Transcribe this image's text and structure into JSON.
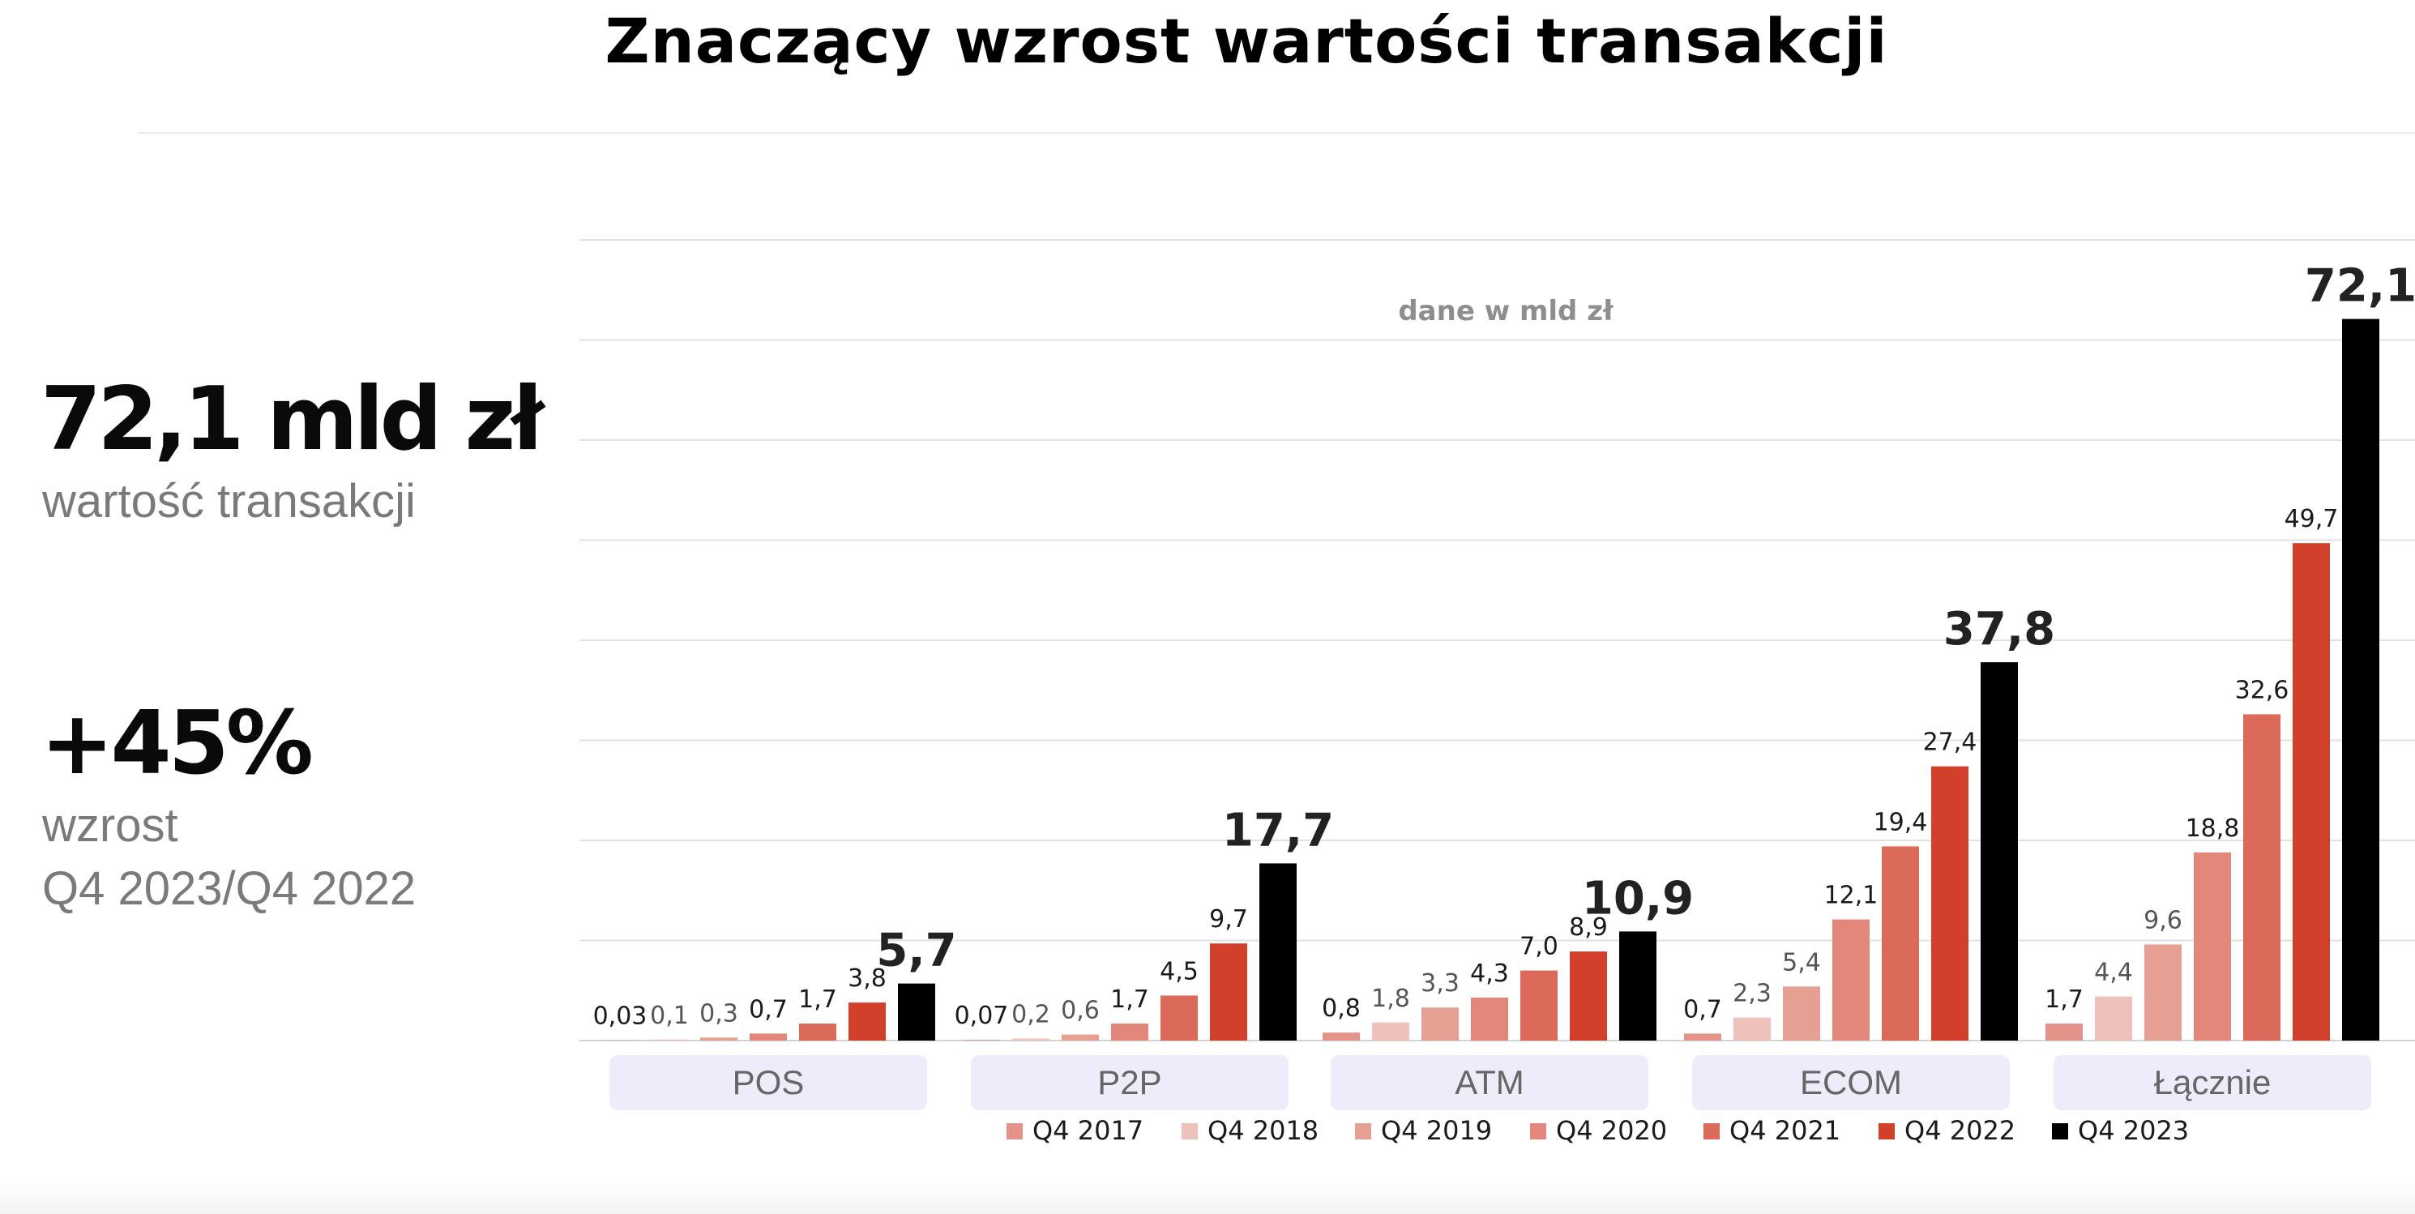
{
  "title": "Znaczący wzrost wartości transakcji",
  "summary": {
    "total_value": "72,1 mld zł",
    "total_label": "wartość transakcji",
    "growth_value": "+45%",
    "growth_label": "wzrost",
    "growth_period": "Q4 2023/Q4 2022"
  },
  "chart_data": {
    "type": "bar",
    "subtitle": "dane w mld zł",
    "categories": [
      "POS",
      "P2P",
      "ATM",
      "ECOM",
      "Łącznie"
    ],
    "ylim": [
      0,
      80
    ],
    "grid": true,
    "legend_position": "bottom",
    "series": [
      {
        "name": "Q4 2017",
        "color": "#e3938a",
        "values": [
          0.03,
          0.07,
          0.8,
          0.7,
          1.7
        ],
        "labels": [
          "0,03",
          "0,07",
          "0,8",
          "0,7",
          "1,7"
        ]
      },
      {
        "name": "Q4 2018",
        "color": "#eec1bb",
        "values": [
          0.1,
          0.2,
          1.8,
          2.3,
          4.4
        ],
        "labels": [
          "0,1",
          "0,2",
          "1,8",
          "2,3",
          "4,4"
        ]
      },
      {
        "name": "Q4 2019",
        "color": "#e6a093",
        "values": [
          0.3,
          0.6,
          3.3,
          5.4,
          9.6
        ],
        "labels": [
          "0,3",
          "0,6",
          "3,3",
          "5,4",
          "9,6"
        ]
      },
      {
        "name": "Q4 2020",
        "color": "#e2877a",
        "values": [
          0.7,
          1.7,
          4.3,
          12.1,
          18.8
        ],
        "labels": [
          "0,7",
          "1,7",
          "4,3",
          "12,1",
          "18,8"
        ]
      },
      {
        "name": "Q4 2021",
        "color": "#dc6a5a",
        "values": [
          1.7,
          4.5,
          7.0,
          19.4,
          32.6
        ],
        "labels": [
          "1,7",
          "4,5",
          "7,0",
          "19,4",
          "32,6"
        ]
      },
      {
        "name": "Q4 2022",
        "color": "#d2402c",
        "values": [
          3.8,
          9.7,
          8.9,
          27.4,
          49.7
        ],
        "labels": [
          "3,8",
          "9,7",
          "8,9",
          "27,4",
          "49,7"
        ]
      },
      {
        "name": "Q4 2023",
        "color": "#000000",
        "values": [
          5.7,
          17.7,
          10.9,
          37.8,
          72.1
        ],
        "labels": [
          "5,7",
          "17,7",
          "10,9",
          "37,8",
          "72,1"
        ]
      }
    ]
  }
}
